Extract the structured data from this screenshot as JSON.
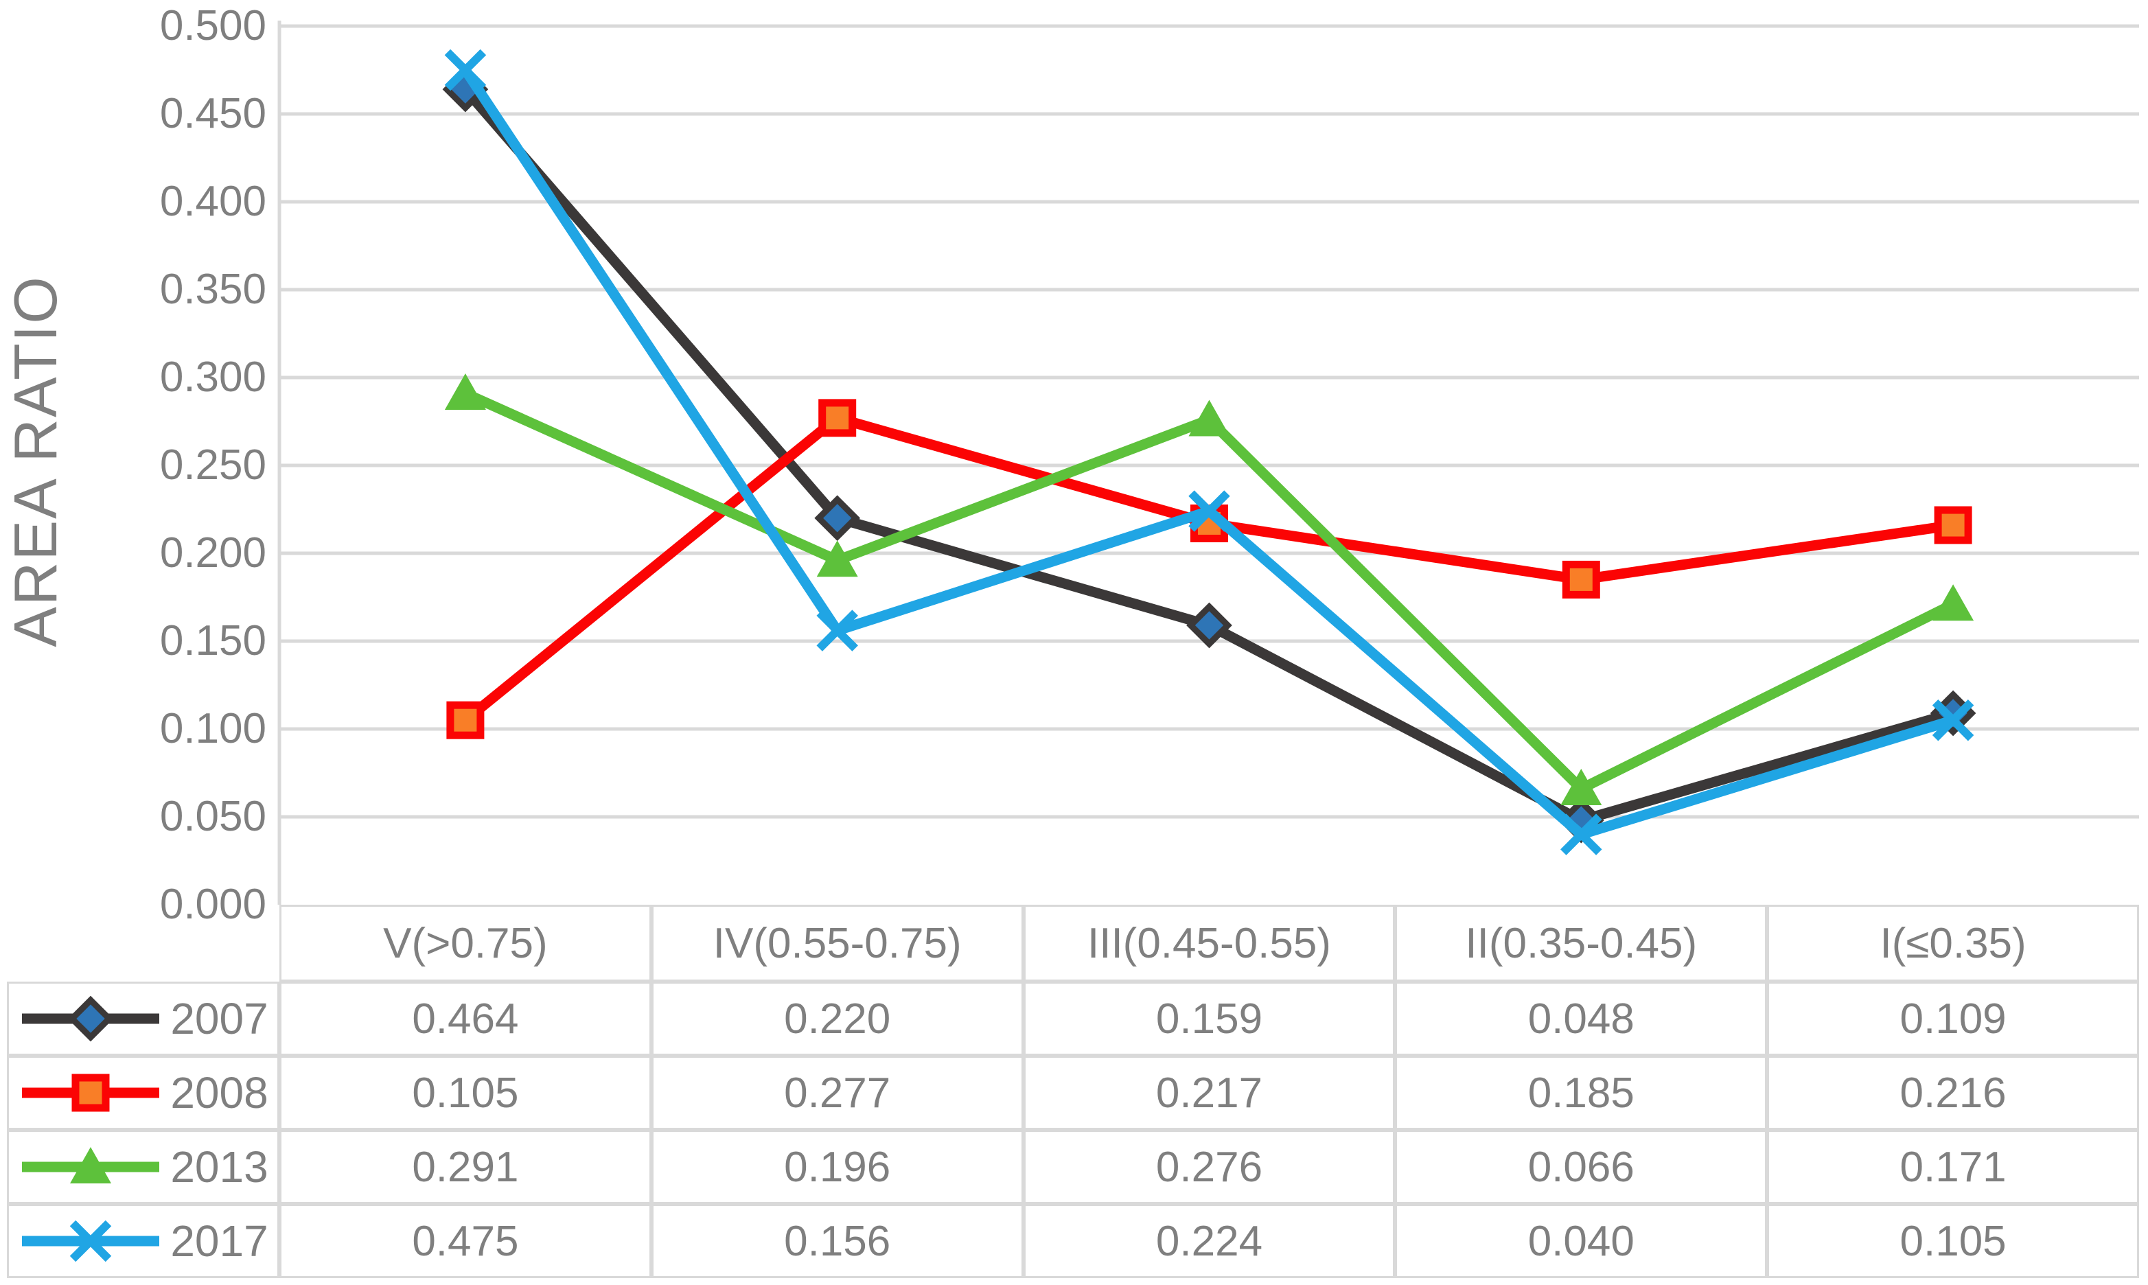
{
  "chart_data": {
    "type": "line",
    "title": "",
    "ylabel": "AREA RATIO",
    "xlabel": "",
    "categories": [
      "V(>0.75)",
      "IV(0.55-0.75)",
      "III(0.45-0.55)",
      "II(0.35-0.45)",
      "I(≤0.35)"
    ],
    "series": [
      {
        "name": "2007",
        "color": "#3B3838",
        "marker": "diamond",
        "marker_fill": "#2E75B6",
        "values": [
          0.464,
          0.22,
          0.159,
          0.048,
          0.109
        ]
      },
      {
        "name": "2008",
        "color": "#FB0404",
        "marker": "square",
        "marker_fill": "#F97E27",
        "values": [
          0.105,
          0.277,
          0.217,
          0.185,
          0.216
        ]
      },
      {
        "name": "2013",
        "color": "#5DC13B",
        "marker": "triangle",
        "marker_fill": "#5DC13B",
        "values": [
          0.291,
          0.196,
          0.276,
          0.066,
          0.171
        ]
      },
      {
        "name": "2017",
        "color": "#20A5E4",
        "marker": "x",
        "marker_fill": "#20A5E4",
        "values": [
          0.475,
          0.156,
          0.224,
          0.04,
          0.105
        ]
      }
    ],
    "ylim": [
      0.0,
      0.5
    ],
    "ytick_step": 0.05,
    "ytick_labels": [
      "0.000",
      "0.050",
      "0.100",
      "0.150",
      "0.200",
      "0.250",
      "0.300",
      "0.350",
      "0.400",
      "0.450",
      "0.500"
    ],
    "value_decimals": 3,
    "grid": true,
    "legend_position": "table-left-column",
    "data_table_shown": true
  },
  "style": {
    "grid_color": "#D9D9D9",
    "axis_color": "#D9D9D9",
    "text_color": "#7F7F7F",
    "background": "#FFFFFF"
  }
}
